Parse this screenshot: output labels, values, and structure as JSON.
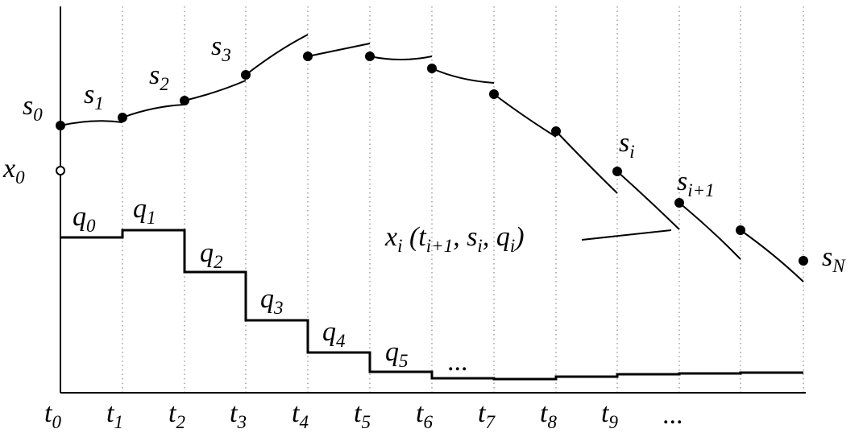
{
  "state_labels": [
    {
      "base": "s",
      "sub": "0"
    },
    {
      "base": "s",
      "sub": "1"
    },
    {
      "base": "s",
      "sub": "2"
    },
    {
      "base": "s",
      "sub": "3"
    },
    {
      "base": "s",
      "sub": "i"
    },
    {
      "base": "s",
      "sub": "i+1"
    },
    {
      "base": "s",
      "sub": "N"
    }
  ],
  "initial_label": {
    "base": "x",
    "sub": "0"
  },
  "control_labels": [
    {
      "base": "q",
      "sub": "0"
    },
    {
      "base": "q",
      "sub": "1"
    },
    {
      "base": "q",
      "sub": "2"
    },
    {
      "base": "q",
      "sub": "3"
    },
    {
      "base": "q",
      "sub": "4"
    },
    {
      "base": "q",
      "sub": "5"
    }
  ],
  "control_ellipsis": "...",
  "time_labels": [
    {
      "base": "t",
      "sub": "0"
    },
    {
      "base": "t",
      "sub": "1"
    },
    {
      "base": "t",
      "sub": "2"
    },
    {
      "base": "t",
      "sub": "3"
    },
    {
      "base": "t",
      "sub": "4"
    },
    {
      "base": "t",
      "sub": "5"
    },
    {
      "base": "t",
      "sub": "6"
    },
    {
      "base": "t",
      "sub": "7"
    },
    {
      "base": "t",
      "sub": "8"
    },
    {
      "base": "t",
      "sub": "9"
    }
  ],
  "time_ellipsis": "...",
  "formula": [
    {
      "base": "x",
      "sub": "i"
    },
    {
      "base": " (t",
      "sub": "i+1"
    },
    {
      "base": ", s",
      "sub": "i"
    },
    {
      "base": ", q",
      "sub": "i"
    },
    {
      "base": ")"
    }
  ]
}
